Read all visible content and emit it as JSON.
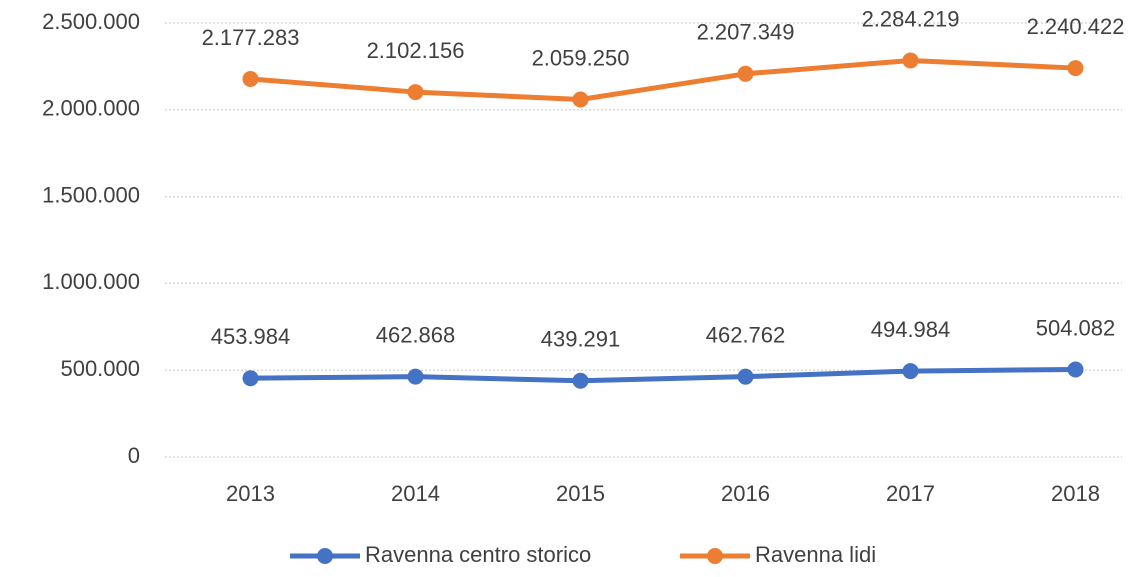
{
  "chart_data": {
    "type": "line",
    "categories": [
      "2013",
      "2014",
      "2015",
      "2016",
      "2017",
      "2018"
    ],
    "series": [
      {
        "name": "Ravenna centro storico",
        "color": "#4472c4",
        "values": [
          453984,
          462868,
          439291,
          462762,
          494984,
          504082
        ],
        "value_labels": [
          "453.984",
          "462.868",
          "439.291",
          "462.762",
          "494.984",
          "504.082"
        ]
      },
      {
        "name": "Ravenna lidi",
        "color": "#ed7d31",
        "values": [
          2177283,
          2102156,
          2059250,
          2207349,
          2284219,
          2240422
        ],
        "value_labels": [
          "2.177.283",
          "2.102.156",
          "2.059.250",
          "2.207.349",
          "2.284.219",
          "2.240.422"
        ]
      }
    ],
    "ylim": [
      0,
      2500000
    ],
    "yticks": [
      0,
      {
        "value": 500000,
        "label": "500.000"
      },
      {
        "value": 1000000,
        "label": "1.000.000"
      },
      {
        "value": 1500000,
        "label": "1.500.000"
      },
      {
        "value": 2000000,
        "label": "2.000.000"
      },
      {
        "value": 2500000,
        "label": "2.500.000"
      }
    ],
    "grid": true,
    "legend": "bottom"
  }
}
